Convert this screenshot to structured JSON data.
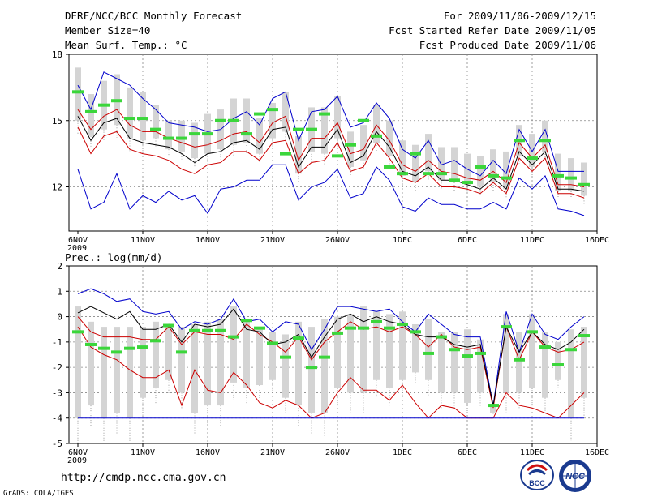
{
  "header": {
    "left_line1": "DERF/NCC/BCC Monthly Forecast",
    "left_line2": "Member Size=40",
    "left_line3": "Mean Surf. Temp.: °C",
    "right_line1": "For 2009/11/06-2009/12/15",
    "right_line2": "Fcst Started Refer Date 2009/11/05",
    "right_line3": "Fcst Produced Date 2009/11/06"
  },
  "footer": {
    "url": "http://cmdp.ncc.cma.gov.cn",
    "credit": "GrADS: COLA/IGES",
    "logo_left_text": "BCC",
    "logo_right_text": "NCC"
  },
  "chart_data": [
    {
      "type": "line",
      "title": "Mean Surf. Temp.: °C",
      "ylabel": "°C",
      "ylim": [
        10,
        18
      ],
      "yticks": [
        "18",
        "15",
        "12"
      ],
      "xlim": [
        0,
        40
      ],
      "xticks": [
        {
          "x": 0,
          "label": "6NOV",
          "sub": "2009"
        },
        {
          "x": 5,
          "label": "11NOV"
        },
        {
          "x": 10,
          "label": "16NOV"
        },
        {
          "x": 15,
          "label": "21NOV"
        },
        {
          "x": 20,
          "label": "26NOV"
        },
        {
          "x": 25,
          "label": "1DEC"
        },
        {
          "x": 30,
          "label": "6DEC"
        },
        {
          "x": 35,
          "label": "11DEC"
        },
        {
          "x": 40,
          "label": "16DEC"
        }
      ],
      "x": [
        0,
        1,
        2,
        3,
        4,
        5,
        6,
        7,
        8,
        9,
        10,
        11,
        12,
        13,
        14,
        15,
        16,
        17,
        18,
        19,
        20,
        21,
        22,
        23,
        24,
        25,
        26,
        27,
        28,
        29,
        30,
        31,
        32,
        33,
        34,
        35,
        36,
        37,
        38,
        39
      ],
      "box_low": [
        15.0,
        14.3,
        14.6,
        14.8,
        14.2,
        14.1,
        14.2,
        13.7,
        13.6,
        13.3,
        13.5,
        13.7,
        13.9,
        14.0,
        13.5,
        14.2,
        14.5,
        12.6,
        13.6,
        13.5,
        14.2,
        12.9,
        13.2,
        14.0,
        13.4,
        12.5,
        12.2,
        12.7,
        12.3,
        12.2,
        12.1,
        12.0,
        12.2,
        11.9,
        13.4,
        12.9,
        13.6,
        11.8,
        11.8,
        11.6
      ],
      "box_high": [
        17.4,
        16.2,
        16.8,
        17.1,
        16.5,
        16.3,
        15.7,
        15.0,
        15.0,
        14.9,
        15.3,
        15.5,
        16.0,
        16.0,
        15.1,
        15.8,
        16.3,
        14.3,
        15.6,
        15.6,
        16.1,
        14.5,
        14.8,
        15.7,
        15.0,
        14.1,
        13.9,
        14.4,
        13.8,
        13.8,
        13.5,
        13.4,
        13.7,
        13.6,
        14.8,
        14.4,
        15.0,
        13.5,
        13.3,
        13.1
      ],
      "series": [
        {
          "name": "ensemble mean (bar)",
          "color": "#3bd63b",
          "values": [
            16.3,
            15.4,
            15.7,
            15.9,
            15.1,
            15.1,
            14.6,
            14.2,
            14.2,
            14.4,
            14.4,
            15.0,
            15.0,
            14.4,
            15.3,
            15.5,
            13.5,
            14.6,
            14.6,
            15.3,
            13.4,
            13.9,
            15.0,
            14.3,
            12.9,
            12.6,
            13.5,
            12.6,
            12.6,
            12.3,
            12.2,
            12.9,
            12.5,
            12.4,
            14.1,
            13.3,
            14.1,
            12.5,
            12.4,
            12.1
          ]
        },
        {
          "name": "max",
          "color": "#0000cc",
          "values": [
            16.6,
            15.5,
            17.2,
            16.9,
            16.6,
            16.0,
            15.5,
            14.9,
            14.8,
            14.7,
            14.5,
            14.6,
            15.1,
            15.4,
            14.8,
            16.0,
            16.3,
            14.1,
            15.4,
            15.5,
            16.1,
            14.7,
            14.9,
            15.8,
            15.1,
            13.7,
            13.3,
            14.1,
            13.0,
            13.2,
            12.8,
            12.5,
            13.2,
            12.6,
            14.6,
            13.6,
            14.6,
            12.7,
            12.7,
            12.7
          ]
        },
        {
          "name": "upper",
          "color": "#cc0000",
          "values": [
            15.5,
            14.6,
            15.2,
            15.5,
            14.8,
            14.5,
            14.5,
            14.2,
            14.0,
            13.8,
            13.9,
            14.1,
            14.4,
            14.5,
            14.0,
            14.9,
            15.2,
            13.2,
            14.2,
            14.2,
            14.9,
            13.5,
            13.7,
            14.8,
            14.1,
            13.0,
            12.7,
            13.2,
            12.7,
            12.6,
            12.4,
            12.3,
            12.7,
            12.2,
            14.0,
            13.3,
            13.9,
            12.1,
            12.1,
            12.0
          ]
        },
        {
          "name": "ensemble mean",
          "color": "#000000",
          "values": [
            15.2,
            14.1,
            14.9,
            15.1,
            14.2,
            14.0,
            13.9,
            13.8,
            13.5,
            13.1,
            13.5,
            13.6,
            14.0,
            14.1,
            13.7,
            14.6,
            14.7,
            12.9,
            13.8,
            13.8,
            14.6,
            13.1,
            13.4,
            14.5,
            13.8,
            12.7,
            12.5,
            12.9,
            12.3,
            12.3,
            12.1,
            11.9,
            12.4,
            11.9,
            13.6,
            13.0,
            13.6,
            11.9,
            11.9,
            11.8
          ]
        },
        {
          "name": "lower",
          "color": "#cc0000",
          "values": [
            14.7,
            13.5,
            14.3,
            14.5,
            13.7,
            13.5,
            13.4,
            13.2,
            12.8,
            12.6,
            13.0,
            13.1,
            13.6,
            13.6,
            13.2,
            14.0,
            14.1,
            12.6,
            13.1,
            13.2,
            14.0,
            12.7,
            12.9,
            14.0,
            13.3,
            12.4,
            12.2,
            12.6,
            12.0,
            12.0,
            11.9,
            11.7,
            12.2,
            11.7,
            13.3,
            12.7,
            13.3,
            11.7,
            11.7,
            11.5
          ]
        },
        {
          "name": "min",
          "color": "#0000cc",
          "values": [
            12.8,
            11.0,
            11.3,
            12.6,
            11.0,
            11.6,
            11.3,
            11.8,
            11.4,
            11.6,
            10.8,
            11.9,
            12.0,
            12.3,
            12.3,
            13.0,
            13.0,
            11.4,
            12.0,
            12.2,
            12.8,
            11.5,
            11.7,
            12.9,
            12.3,
            11.1,
            10.9,
            11.5,
            11.2,
            11.2,
            11.0,
            11.0,
            11.3,
            11.0,
            12.4,
            11.9,
            12.5,
            11.0,
            10.9,
            10.7
          ]
        }
      ]
    },
    {
      "type": "line",
      "title": "Prec.: log(mm/d)",
      "ylabel": "log(mm/d)",
      "ylim": [
        -5,
        2
      ],
      "yticks": [
        "2",
        "1",
        "0",
        "-1",
        "-2",
        "-3",
        "-4",
        "-5"
      ],
      "xlim": [
        0,
        40
      ],
      "xticks": [
        {
          "x": 0,
          "label": "6NOV",
          "sub": "2009"
        },
        {
          "x": 5,
          "label": "11NOV"
        },
        {
          "x": 10,
          "label": "16NOV"
        },
        {
          "x": 15,
          "label": "21NOV"
        },
        {
          "x": 20,
          "label": "26NOV"
        },
        {
          "x": 25,
          "label": "1DEC"
        },
        {
          "x": 30,
          "label": "6DEC"
        },
        {
          "x": 35,
          "label": "11DEC"
        },
        {
          "x": 40,
          "label": "16DEC"
        }
      ],
      "x": [
        0,
        1,
        2,
        3,
        4,
        5,
        6,
        7,
        8,
        9,
        10,
        11,
        12,
        13,
        14,
        15,
        16,
        17,
        18,
        19,
        20,
        21,
        22,
        23,
        24,
        25,
        26,
        27,
        28,
        29,
        30,
        31,
        32,
        33,
        34,
        35,
        36,
        37,
        38,
        39
      ],
      "box_low": [
        -4.0,
        -3.5,
        -4.0,
        -3.8,
        -4.0,
        -3.2,
        -2.8,
        -2.5,
        -3.0,
        -3.8,
        -3.5,
        -3.5,
        -2.6,
        -2.8,
        -2.7,
        -2.5,
        -3.2,
        -3.5,
        -3.8,
        -3.8,
        -2.8,
        -3.0,
        -3.0,
        -2.5,
        -2.8,
        -2.5,
        -2.2,
        -2.5,
        -3.0,
        -3.0,
        -3.4,
        -3.0,
        -3.8,
        -3.0,
        -3.0,
        -2.8,
        -3.2,
        -2.5,
        -4.0,
        -3.2
      ],
      "box_high": [
        0.4,
        -0.2,
        -0.4,
        -0.4,
        -0.4,
        -0.4,
        -0.2,
        -0.3,
        -0.4,
        -0.3,
        -0.2,
        -0.1,
        0.4,
        -0.1,
        -0.5,
        -0.6,
        -0.7,
        -0.2,
        -0.4,
        -0.1,
        0.0,
        0.1,
        0.4,
        0.2,
        0.1,
        0.2,
        -0.3,
        -0.1,
        -0.6,
        -0.6,
        -0.5,
        -0.9,
        -3.5,
        0.1,
        -0.6,
        0.1,
        -0.6,
        -1.0,
        -0.5,
        -0.4
      ],
      "series": [
        {
          "name": "ensemble mean (bar)",
          "color": "#3bd63b",
          "values": [
            -0.6,
            -1.1,
            -1.25,
            -1.4,
            -1.25,
            -1.2,
            -0.95,
            -0.35,
            -1.4,
            -0.55,
            -0.55,
            -0.55,
            -0.8,
            -0.15,
            -0.45,
            -1.05,
            -1.6,
            -0.85,
            -2.0,
            -1.6,
            -0.65,
            -0.45,
            -0.45,
            -0.2,
            -0.45,
            -0.3,
            -0.6,
            -1.45,
            -0.8,
            -1.3,
            -1.55,
            -1.45,
            -3.5,
            -0.4,
            -1.7,
            -0.6,
            -1.2,
            -1.9,
            -1.3,
            -0.75
          ]
        },
        {
          "name": "max",
          "color": "#0000cc",
          "values": [
            0.9,
            1.1,
            0.9,
            0.6,
            0.7,
            0.2,
            0.1,
            0.2,
            -0.5,
            -0.2,
            -0.3,
            -0.1,
            0.7,
            -0.2,
            -0.1,
            -0.6,
            -0.2,
            -0.3,
            -1.3,
            -0.5,
            0.4,
            0.4,
            0.3,
            0.2,
            0.3,
            -0.2,
            -0.6,
            0.1,
            -0.3,
            -0.7,
            -0.8,
            -0.8,
            -3.5,
            0.2,
            -1.4,
            0.1,
            -0.7,
            -0.9,
            -0.4,
            0.0
          ]
        },
        {
          "name": "upper",
          "color": "#cc0000",
          "values": [
            0.0,
            -0.6,
            -0.8,
            -0.8,
            -0.8,
            -0.9,
            -0.9,
            -0.4,
            -1.1,
            -0.6,
            -0.7,
            -0.7,
            -0.9,
            -0.3,
            -0.7,
            -1.0,
            -1.4,
            -0.8,
            -1.7,
            -1.0,
            -0.6,
            -0.2,
            -0.5,
            -0.4,
            -0.6,
            -0.4,
            -0.7,
            -1.2,
            -0.7,
            -1.2,
            -1.3,
            -1.2,
            -3.6,
            -0.4,
            -1.7,
            -0.6,
            -1.2,
            -1.4,
            -1.3,
            -1.0
          ]
        },
        {
          "name": "ensemble mean",
          "color": "#000000",
          "values": [
            0.15,
            0.4,
            0.15,
            -0.1,
            0.2,
            -0.5,
            -0.5,
            -0.3,
            -1.0,
            -0.3,
            -0.4,
            -0.3,
            0.3,
            -0.5,
            -0.6,
            -1.1,
            -1.0,
            -0.7,
            -1.6,
            -0.8,
            -0.1,
            0.1,
            -0.2,
            0.0,
            -0.2,
            -0.3,
            -0.7,
            -0.8,
            -0.8,
            -1.1,
            -1.2,
            -1.1,
            -3.5,
            -0.4,
            -1.4,
            -0.6,
            -1.1,
            -1.3,
            -1.0,
            -0.5
          ]
        },
        {
          "name": "lower",
          "color": "#cc0000",
          "values": [
            -0.4,
            -1.2,
            -1.5,
            -1.7,
            -2.1,
            -2.4,
            -2.4,
            -2.1,
            -3.5,
            -2.1,
            -2.9,
            -3.0,
            -2.2,
            -2.7,
            -3.4,
            -3.6,
            -3.3,
            -3.5,
            -4.0,
            -3.8,
            -3.0,
            -2.4,
            -2.9,
            -2.9,
            -3.3,
            -2.7,
            -3.4,
            -4.0,
            -3.5,
            -3.6,
            -4.0,
            -4.0,
            -4.0,
            -3.0,
            -3.5,
            -3.6,
            -3.8,
            -4.0,
            -3.5,
            -3.0
          ]
        },
        {
          "name": "min",
          "color": "#0000cc",
          "values": [
            -4.0,
            -4.0,
            -4.0,
            -4.0,
            -4.0,
            -4.0,
            -4.0,
            -4.0,
            -4.0,
            -4.0,
            -4.0,
            -4.0,
            -4.0,
            -4.0,
            -4.0,
            -4.0,
            -4.0,
            -4.0,
            -4.0,
            -4.0,
            -4.0,
            -4.0,
            -4.0,
            -4.0,
            -4.0,
            -4.0,
            -4.0,
            -4.0,
            -4.0,
            -4.0,
            -4.0,
            -4.0,
            -4.0,
            -4.0,
            -4.0,
            -4.0,
            -4.0,
            -4.0,
            -4.0,
            -4.0
          ]
        }
      ]
    }
  ]
}
